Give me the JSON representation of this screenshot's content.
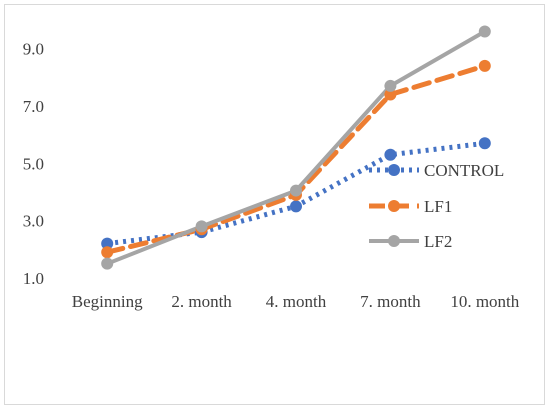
{
  "chart_data": {
    "type": "line",
    "title": "",
    "xlabel": "",
    "ylabel": "",
    "categories": [
      "Beginning",
      "2. month",
      "4. month",
      "7. month",
      "10. month"
    ],
    "y_ticks": [
      "1.0",
      "3.0",
      "5.0",
      "7.0",
      "9.0"
    ],
    "ylim": [
      1.0,
      10.0
    ],
    "grid": false,
    "legend_position": "right",
    "series": [
      {
        "name": "CONTROL",
        "values": [
          2.2,
          2.6,
          3.5,
          5.3,
          5.7
        ],
        "color": "#4472c4",
        "dash": "dotted"
      },
      {
        "name": "LF1",
        "values": [
          1.9,
          2.7,
          3.9,
          7.4,
          8.4
        ],
        "color": "#ed7d31",
        "dash": "dashed"
      },
      {
        "name": "LF2",
        "values": [
          1.5,
          2.8,
          4.05,
          7.7,
          9.6
        ],
        "color": "#a5a5a5",
        "dash": "solid"
      }
    ]
  }
}
